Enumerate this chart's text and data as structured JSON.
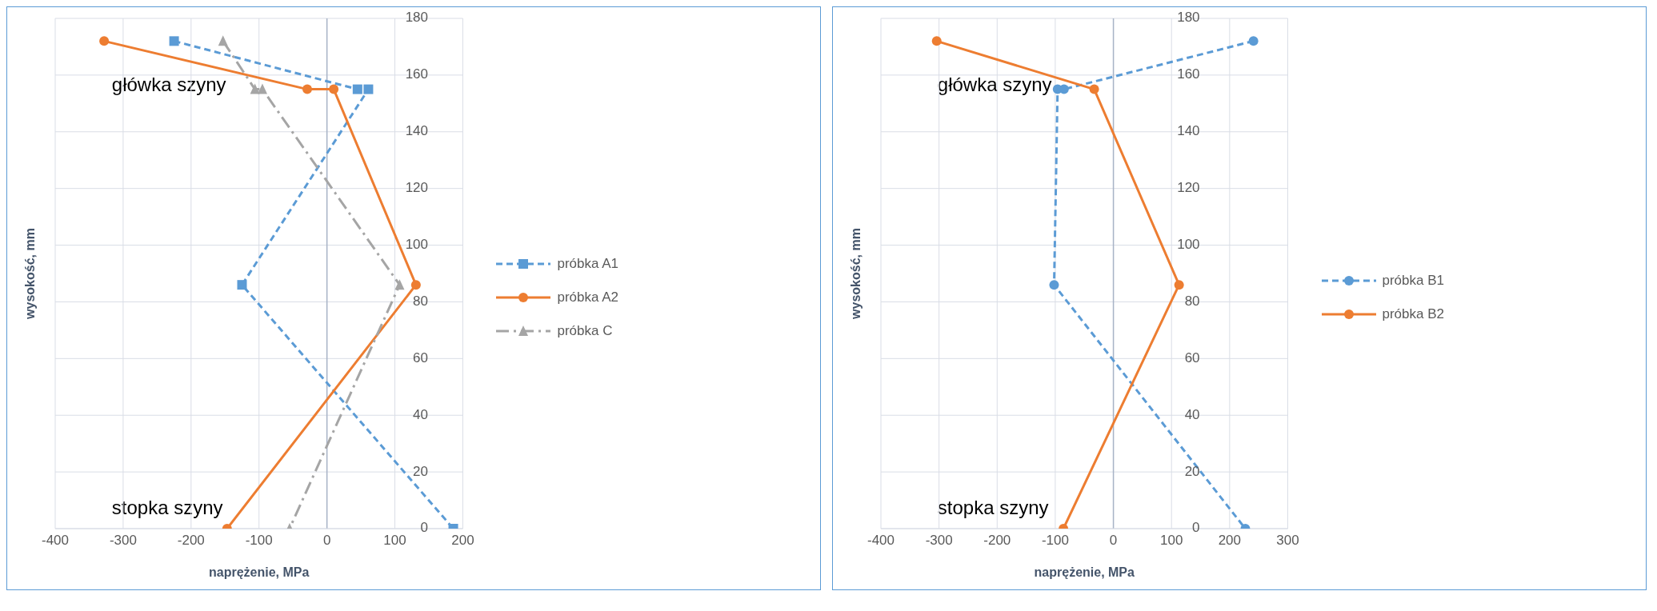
{
  "chart_data": [
    {
      "type": "line",
      "xlabel": "naprężenie, MPa",
      "ylabel": "wysokość, mm",
      "xlim": [
        -400,
        200
      ],
      "xticks": [
        -400,
        -300,
        -200,
        -100,
        0,
        100,
        200
      ],
      "ylim": [
        0,
        180
      ],
      "yticks": [
        0,
        20,
        40,
        60,
        80,
        100,
        120,
        140,
        160,
        180
      ],
      "grid": true,
      "legend": "right",
      "series": [
        {
          "name": "próbka A1",
          "color": "#5b9bd5",
          "marker": "square",
          "line_style": "dashed",
          "x": [
            -225,
            45,
            61,
            -125,
            186
          ],
          "values": [
            172,
            155,
            155,
            86,
            0
          ]
        },
        {
          "name": "próbka A2",
          "color": "#ed7d31",
          "marker": "circle",
          "line_style": "solid",
          "x": [
            -328,
            -29,
            10,
            131,
            -147
          ],
          "values": [
            172,
            155,
            155,
            86,
            0
          ]
        },
        {
          "name": "próbka C",
          "color": "#a5a5a5",
          "marker": "triangle",
          "line_style": "dashdot",
          "x": [
            -153,
            -106,
            -95,
            107,
            -55
          ],
          "values": [
            172,
            155,
            155,
            86,
            0
          ]
        }
      ],
      "annotations": [
        "główka szyny",
        "stopka szyny"
      ]
    },
    {
      "type": "line",
      "xlabel": "naprężenie, MPa",
      "ylabel": "wysokość, mm",
      "xlim": [
        -400,
        300
      ],
      "xticks": [
        -400,
        -300,
        -200,
        -100,
        0,
        100,
        200,
        300
      ],
      "ylim": [
        0,
        180
      ],
      "yticks": [
        0,
        20,
        40,
        60,
        80,
        100,
        120,
        140,
        160,
        180
      ],
      "grid": true,
      "legend": "right",
      "series": [
        {
          "name": "próbka B1",
          "color": "#5b9bd5",
          "marker": "circle",
          "line_style": "dashed",
          "x": [
            241,
            -85,
            -96,
            -102,
            227
          ],
          "values": [
            172,
            155,
            155,
            86,
            0
          ]
        },
        {
          "name": "próbka B2",
          "color": "#ed7d31",
          "marker": "circle",
          "line_style": "solid",
          "x": [
            -304,
            -33,
            113,
            -86
          ],
          "values": [
            172,
            155,
            86,
            0
          ]
        }
      ],
      "annotations": [
        "główka szyny",
        "stopka szyny"
      ]
    }
  ]
}
